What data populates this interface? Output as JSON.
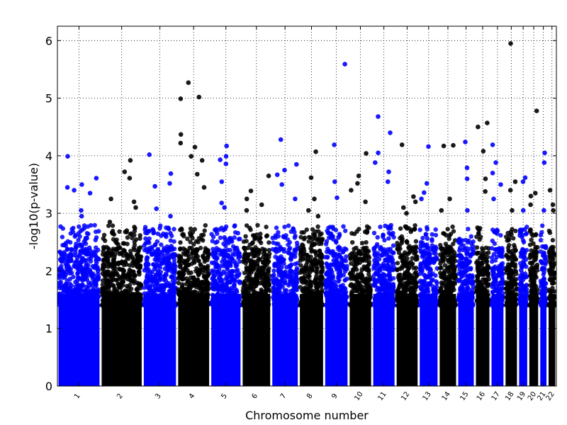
{
  "chart_data": {
    "type": "scatter",
    "title": "",
    "xlabel": "Chromosome number",
    "ylabel": "-log10(p-value)",
    "ylim": [
      0,
      6.25
    ],
    "yticks": [
      0,
      1,
      2,
      3,
      4,
      5,
      6
    ],
    "grid": "dotted",
    "colors": {
      "odd": "#0000ff",
      "even": "#000000"
    },
    "chromosomes": [
      {
        "label": "1",
        "size": 249,
        "peaks": [
          3.99,
          3.61,
          3.5,
          3.45,
          3.4,
          3.35,
          3.05,
          2.95
        ]
      },
      {
        "label": "2",
        "size": 243,
        "peaks": [
          3.92,
          3.72,
          3.61,
          3.25,
          3.2,
          3.1,
          2.85
        ]
      },
      {
        "label": "3",
        "size": 198,
        "peaks": [
          4.02,
          3.69,
          3.52,
          3.47,
          3.08,
          2.95
        ]
      },
      {
        "label": "4",
        "size": 191,
        "peaks": [
          5.27,
          5.02,
          4.99,
          4.37,
          4.22,
          4.15,
          3.99,
          3.92,
          3.68,
          3.45
        ]
      },
      {
        "label": "5",
        "size": 181,
        "peaks": [
          4.17,
          3.99,
          3.93,
          3.86,
          3.55,
          3.18,
          3.1
        ]
      },
      {
        "label": "6",
        "size": 171,
        "peaks": [
          3.65,
          3.39,
          3.25,
          3.15,
          3.05
        ]
      },
      {
        "label": "7",
        "size": 159,
        "peaks": [
          4.28,
          3.85,
          3.75,
          3.67,
          3.5,
          3.25
        ]
      },
      {
        "label": "8",
        "size": 146,
        "peaks": [
          4.07,
          3.62,
          3.25,
          3.05,
          2.95
        ]
      },
      {
        "label": "9",
        "size": 141,
        "peaks": [
          5.59,
          4.19,
          3.55,
          3.27
        ]
      },
      {
        "label": "10",
        "size": 136,
        "peaks": [
          4.04,
          3.65,
          3.52,
          3.4,
          3.2
        ]
      },
      {
        "label": "11",
        "size": 135,
        "peaks": [
          4.68,
          4.4,
          4.05,
          3.88,
          3.72,
          3.55
        ]
      },
      {
        "label": "12",
        "size": 133,
        "peaks": [
          4.19,
          3.29,
          3.2,
          3.1,
          3.0
        ]
      },
      {
        "label": "13",
        "size": 115,
        "peaks": [
          4.16,
          3.52,
          3.36,
          3.25
        ]
      },
      {
        "label": "14",
        "size": 107,
        "peaks": [
          4.18,
          4.17,
          3.25,
          3.05
        ]
      },
      {
        "label": "15",
        "size": 102,
        "peaks": [
          4.24,
          3.79,
          3.6,
          3.05
        ]
      },
      {
        "label": "16",
        "size": 90,
        "peaks": [
          4.57,
          4.5,
          4.08,
          3.6,
          3.38
        ]
      },
      {
        "label": "17",
        "size": 81,
        "peaks": [
          4.19,
          3.88,
          3.7,
          3.5,
          3.25
        ]
      },
      {
        "label": "18",
        "size": 78,
        "peaks": [
          5.95,
          3.55,
          3.4,
          3.05
        ]
      },
      {
        "label": "19",
        "size": 59,
        "peaks": [
          3.62,
          3.55,
          3.05
        ]
      },
      {
        "label": "20",
        "size": 63,
        "peaks": [
          4.78,
          3.35,
          3.3,
          3.15
        ]
      },
      {
        "label": "21",
        "size": 48,
        "peaks": [
          4.05,
          3.88,
          3.05
        ]
      },
      {
        "label": "22",
        "size": 51,
        "peaks": [
          3.4,
          3.15,
          3.05
        ]
      }
    ]
  }
}
